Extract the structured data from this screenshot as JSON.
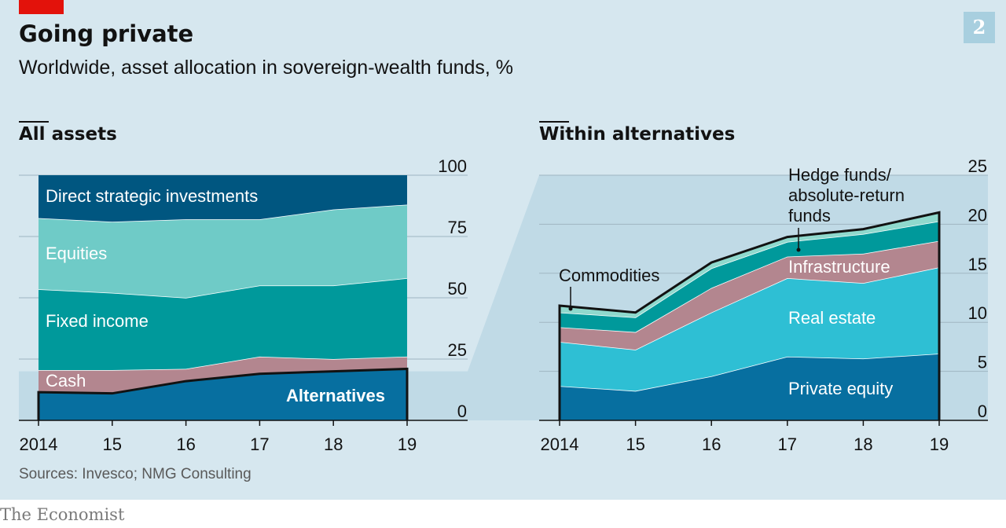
{
  "header": {
    "chart_number": "2",
    "title": "Going private",
    "subtitle": "Worldwide, asset allocation in sovereign-wealth funds, %"
  },
  "footer": {
    "source": "Sources: Invesco; NMG Consulting",
    "brand": "The Economist"
  },
  "colors": {
    "background": "#d6e7ef",
    "shade": "#c0dae6",
    "red_tag": "#e3120b",
    "dark_blue": "#005680",
    "mid_blue": "#076fa0",
    "light_teal": "#6fcbc7",
    "teal": "#00999b",
    "mauve": "#b3868f",
    "cyan": "#2ebfd4",
    "pale_teal": "#8fd9cd",
    "outline": "#121212"
  },
  "chart_data": [
    {
      "type": "area",
      "stacked": true,
      "title": "All assets",
      "x": [
        2014,
        2015,
        2016,
        2017,
        2018,
        2019
      ],
      "x_tick_labels": [
        "2014",
        "15",
        "16",
        "17",
        "18",
        "19"
      ],
      "ylim": [
        0,
        100
      ],
      "y_ticks": [
        0,
        25,
        50,
        75,
        100
      ],
      "y_tick_labels": [
        "0",
        "25",
        "50",
        "75",
        "100"
      ],
      "y_axis_side": "right",
      "grid": true,
      "series": [
        {
          "name": "Alternatives",
          "color": "#076fa0",
          "values": [
            11.5,
            11,
            16,
            19,
            20,
            21
          ]
        },
        {
          "name": "Cash",
          "color": "#b3868f",
          "values": [
            9,
            9.5,
            5,
            7,
            5,
            5
          ]
        },
        {
          "name": "Fixed income",
          "color": "#00999b",
          "values": [
            33,
            31.5,
            29,
            29,
            30,
            32
          ]
        },
        {
          "name": "Equities",
          "color": "#6fcbc7",
          "values": [
            29,
            29,
            32,
            27,
            31,
            30
          ]
        },
        {
          "name": "Direct strategic investments",
          "color": "#005680",
          "values": [
            17.5,
            19,
            18,
            18,
            14,
            12
          ]
        }
      ]
    },
    {
      "type": "area",
      "stacked": true,
      "title": "Within alternatives",
      "x": [
        2014,
        2015,
        2016,
        2017,
        2018,
        2019
      ],
      "x_tick_labels": [
        "2014",
        "15",
        "16",
        "17",
        "18",
        "19"
      ],
      "ylim": [
        0,
        25
      ],
      "y_ticks": [
        0,
        5,
        10,
        15,
        20,
        25
      ],
      "y_tick_labels": [
        "0",
        "5",
        "10",
        "15",
        "20",
        "25"
      ],
      "y_axis_side": "right",
      "grid": true,
      "series": [
        {
          "name": "Private equity",
          "color": "#076fa0",
          "values": [
            3.5,
            3,
            4.5,
            6.5,
            6.3,
            6.8
          ]
        },
        {
          "name": "Real estate",
          "color": "#2ebfd4",
          "values": [
            4.5,
            4.2,
            6.5,
            8,
            7.7,
            8.8
          ]
        },
        {
          "name": "Infrastructure",
          "color": "#b3868f",
          "values": [
            1.5,
            1.8,
            2.5,
            2.2,
            3,
            2.7
          ]
        },
        {
          "name": "Hedge funds/ absolute-return funds",
          "label_lines": [
            "Hedge funds/",
            "absolute-return",
            "funds"
          ],
          "color": "#00999b",
          "values": [
            1.5,
            1.5,
            2,
            1.5,
            2,
            2
          ]
        },
        {
          "name": "Commodities",
          "color": "#8fd9cd",
          "values": [
            0.7,
            0.5,
            0.6,
            0.5,
            0.5,
            0.9
          ]
        }
      ]
    }
  ]
}
